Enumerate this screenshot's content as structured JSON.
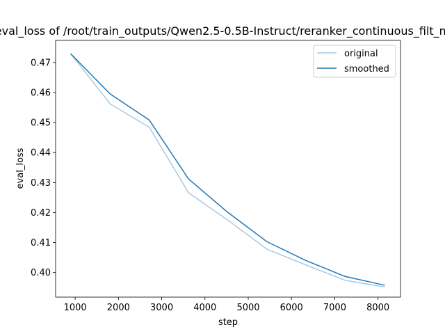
{
  "chart_data": {
    "type": "line",
    "title": "eval_loss of /root/train_outputs/Qwen2.5-0.5B-Instruct/reranker_continuous_filt_m",
    "xlabel": "step",
    "ylabel": "eval_loss",
    "xlim": [
      548,
      8520
    ],
    "ylim": [
      0.3918,
      0.4774
    ],
    "grid": false,
    "legend_position": "top-right",
    "x_ticks": [
      1000,
      2000,
      3000,
      4000,
      5000,
      6000,
      7000,
      8000
    ],
    "y_ticks": [
      0.4,
      0.41,
      0.42,
      0.43,
      0.44,
      0.45,
      0.46,
      0.47
    ],
    "x": [
      905,
      1810,
      2715,
      3620,
      4525,
      5430,
      6335,
      7240,
      8145
    ],
    "series": [
      {
        "name": "original",
        "color": "#a6cae3",
        "values": [
          0.4728,
          0.4562,
          0.4484,
          0.4266,
          0.4175,
          0.4078,
          0.4025,
          0.3974,
          0.3952
        ]
      },
      {
        "name": "smoothed",
        "color": "#1f77b4",
        "values": [
          0.4728,
          0.4595,
          0.4508,
          0.4312,
          0.4201,
          0.4103,
          0.404,
          0.3987,
          0.3958
        ]
      }
    ]
  }
}
